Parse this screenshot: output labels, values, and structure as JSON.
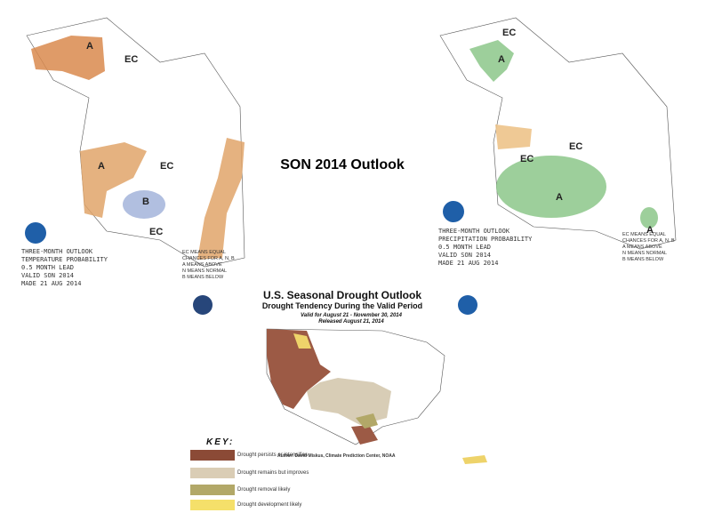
{
  "title": "SON 2014 Outlook",
  "temperature_map": {
    "caption": [
      "THREE-MONTH OUTLOOK",
      "TEMPERATURE PROBABILITY",
      "0.5 MONTH LEAD",
      "VALID SON 2014",
      "MADE 21 AUG 2014"
    ],
    "legend": [
      "EC MEANS EQUAL",
      "CHANCES FOR A, N, B",
      "A MEANS ABOVE",
      "N MEANS NORMAL",
      "B MEANS BELOW"
    ],
    "labels": [
      "A",
      "A",
      "EC",
      "B",
      "EC",
      "EC"
    ]
  },
  "precipitation_map": {
    "caption": [
      "THREE-MONTH OUTLOOK",
      "PRECIPITATION PROBABILITY",
      "0.5 MONTH LEAD",
      "VALID SON 2014",
      "MADE 21 AUG 2014"
    ],
    "legend": [
      "EC MEANS EQUAL",
      "CHANCES FOR A, N, B",
      "A MEANS ABOVE",
      "N MEANS NORMAL",
      "B MEANS BELOW"
    ],
    "labels": [
      "EC",
      "A",
      "EC",
      "EC",
      "A",
      "A"
    ]
  },
  "drought_map": {
    "title": "U.S. Seasonal Drought Outlook",
    "subtitle": "Drought Tendency During the Valid Period",
    "valid": "Valid for August 21 - November 30, 2014",
    "released": "Released August 21, 2014",
    "key_title": "KEY:",
    "key": [
      "Drought persists or intensifies",
      "Drought remains but improves",
      "Drought removal likely",
      "Drought development likely"
    ],
    "author": "Author: David Miskus, Climate Prediction Center, NOAA"
  }
}
